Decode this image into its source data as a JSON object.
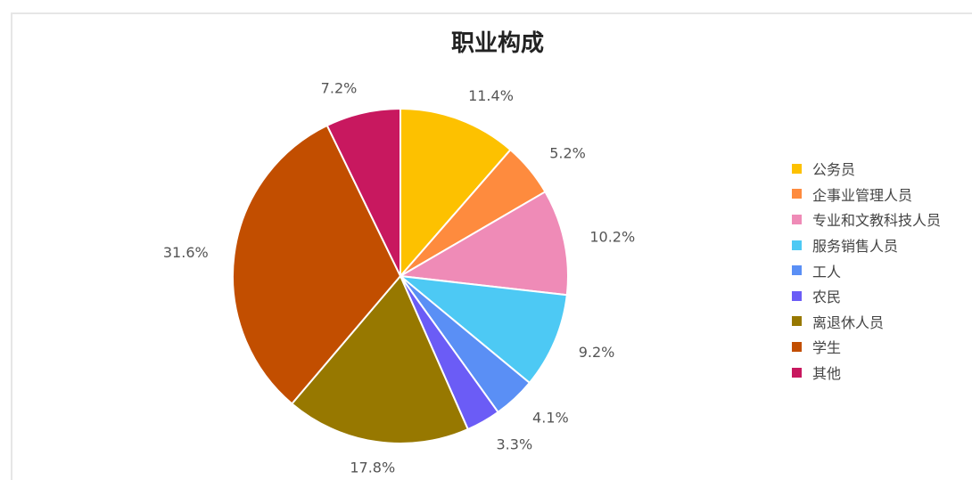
{
  "chart_data": {
    "type": "pie",
    "title": "职业构成",
    "slices": [
      {
        "name": "公务员",
        "value": 11.4,
        "label": "11.4%",
        "color": "#FDC100"
      },
      {
        "name": "企事业管理人员",
        "value": 5.2,
        "label": "5.2%",
        "color": "#FE8B3E"
      },
      {
        "name": "专业和文教科技人员",
        "value": 10.2,
        "label": "10.2%",
        "color": "#EF8BB7"
      },
      {
        "name": "服务销售人员",
        "value": 9.2,
        "label": "9.2%",
        "color": "#4DC9F4"
      },
      {
        "name": "工人",
        "value": 4.1,
        "label": "4.1%",
        "color": "#5A8FF5"
      },
      {
        "name": "农民",
        "value": 3.3,
        "label": "3.3%",
        "color": "#6B5CF6"
      },
      {
        "name": "离退休人员",
        "value": 17.8,
        "label": "17.8%",
        "color": "#977800"
      },
      {
        "name": "学生",
        "value": 31.6,
        "label": "31.6%",
        "color": "#C24E00"
      },
      {
        "name": "其他",
        "value": 7.2,
        "label": "7.2%",
        "color": "#C8185F"
      }
    ],
    "legend_position": "right"
  }
}
